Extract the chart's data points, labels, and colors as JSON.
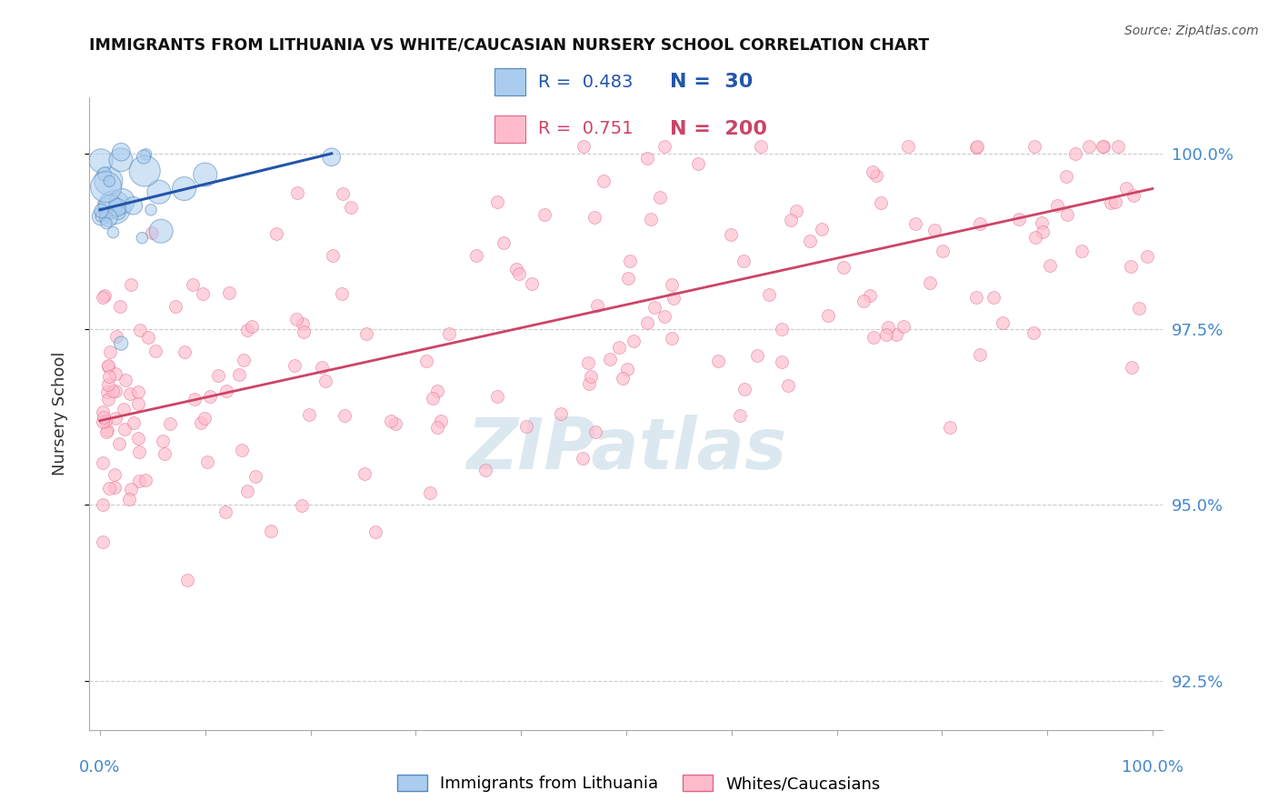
{
  "title": "IMMIGRANTS FROM LITHUANIA VS WHITE/CAUCASIAN NURSERY SCHOOL CORRELATION CHART",
  "source_text": "Source: ZipAtlas.com",
  "ylabel": "Nursery School",
  "yticks": [
    92.5,
    95.0,
    97.5,
    100.0
  ],
  "ytick_labels": [
    "92.5%",
    "95.0%",
    "97.5%",
    "100.0%"
  ],
  "ymin": 91.8,
  "ymax": 100.8,
  "xmin": -1,
  "xmax": 101,
  "blue_R": 0.483,
  "blue_N": 30,
  "pink_R": 0.751,
  "pink_N": 200,
  "blue_color": "#aaccee",
  "blue_edge_color": "#5588bb",
  "blue_line_color": "#2255aa",
  "pink_color": "#ffbbcc",
  "pink_edge_color": "#dd6688",
  "pink_line_color": "#cc4466",
  "legend_label_blue": "Immigrants from Lithuania",
  "legend_label_pink": "Whites/Caucasians",
  "watermark_color": "#dce8f0",
  "title_color": "#111111",
  "source_color": "#555555",
  "axis_label_color": "#4488cc",
  "grid_color": "#cccccc",
  "background_color": "#ffffff",
  "pink_line_x": [
    0,
    100
  ],
  "pink_line_y": [
    96.2,
    99.5
  ],
  "blue_line_x": [
    0,
    22
  ],
  "blue_line_y": [
    99.2,
    100.0
  ]
}
